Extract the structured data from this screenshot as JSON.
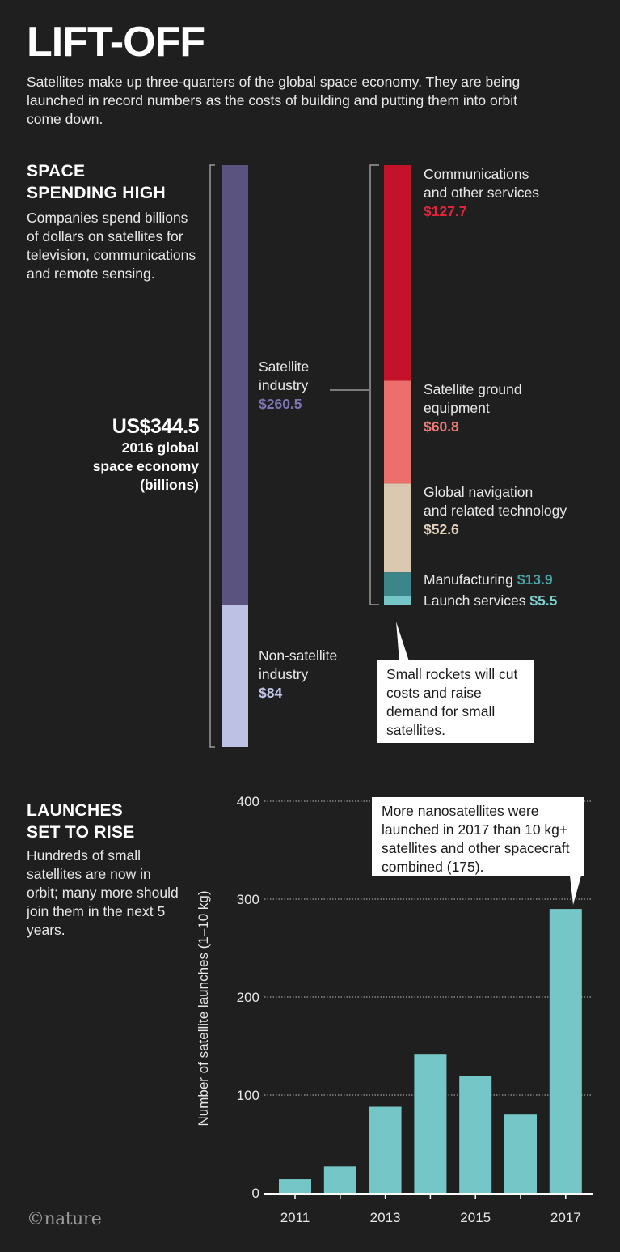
{
  "header": {
    "title": "LIFT-OFF",
    "intro": "Satellites make up three-quarters of the global space economy. They are being launched in record numbers as the costs of building and putting them into orbit come down."
  },
  "spending": {
    "heading_line1": "SPACE",
    "heading_line2": "SPENDING HIGH",
    "body": "Companies spend billions of dollars on satellites for television, communications and remote sensing.",
    "total_value": "US$344.5",
    "total_line1": "2016 global",
    "total_line2": "space economy",
    "total_line3": "(billions)",
    "satellite_label_1": "Satellite",
    "satellite_label_2": "industry",
    "satellite_value": "$260.5",
    "nonsat_label_1": "Non-satellite",
    "nonsat_label_2": "industry",
    "nonsat_value": "$84",
    "comm_label_1": "Communications",
    "comm_label_2": "and other services",
    "comm_value": "$127.7",
    "ground_label_1": "Satellite ground",
    "ground_label_2": "equipment",
    "ground_value": "$60.8",
    "nav_label_1": "Global navigation",
    "nav_label_2": "and related technology",
    "nav_value": "$52.6",
    "manu_label": "Manufacturing",
    "manu_value": "$13.9",
    "launch_label": "Launch services",
    "launch_value": "$5.5",
    "callout": "Small rockets will cut costs and raise demand for small satellites."
  },
  "launches": {
    "heading_line1": "LAUNCHES",
    "heading_line2": "SET TO RISE",
    "body": "Hundreds of small satellites are now in orbit; many more should join them in the next 5 years.",
    "callout": "More nanosatellites were launched in 2017 than 10 kg+ satellites and other spacecraft combined (175)."
  },
  "colors": {
    "background": "#1f1f1f",
    "satellite": "#5a537f",
    "nonsatellite": "#bdc2e4",
    "communications": "#c2132a",
    "ground": "#ec6e6d",
    "navigation": "#dbc8b1",
    "manufacturing": "#3c8589",
    "launch": "#74c6c7",
    "bars": "#74c6c7",
    "satellite_text": "#7b74b0",
    "nonsat_text": "#c3c8ea",
    "comm_text": "#e0243e",
    "ground_text": "#f07a77",
    "nav_text": "#e3d2bb",
    "manu_text": "#4aa3a8",
    "launch_text": "#7fd0d1"
  },
  "footer": {
    "logo": "©nature"
  },
  "chart_data": [
    {
      "type": "bar",
      "title": "2016 global space economy (billions)",
      "unit": "US$ billions",
      "total": 344.5,
      "stacked": true,
      "categories": [
        "Satellite industry",
        "Non-satellite industry"
      ],
      "values": [
        260.5,
        84
      ],
      "breakdown": {
        "name": "Satellite industry",
        "categories": [
          "Communications and other services",
          "Satellite ground equipment",
          "Global navigation and related technology",
          "Manufacturing",
          "Launch services"
        ],
        "values": [
          127.7,
          60.8,
          52.6,
          13.9,
          5.5
        ]
      }
    },
    {
      "type": "bar",
      "title": "LAUNCHES SET TO RISE",
      "xlabel": "",
      "ylabel": "Number of satellite launches (1–10 kg)",
      "ylim": [
        0,
        400
      ],
      "yticks": [
        0,
        100,
        200,
        300,
        400
      ],
      "categories": [
        "2011",
        "2012",
        "2013",
        "2014",
        "2015",
        "2016",
        "2017"
      ],
      "x_tick_labels": [
        "2011",
        "",
        "2013",
        "",
        "2015",
        "",
        "2017"
      ],
      "values": [
        14,
        27,
        88,
        142,
        119,
        80,
        290
      ],
      "grid": true
    }
  ]
}
